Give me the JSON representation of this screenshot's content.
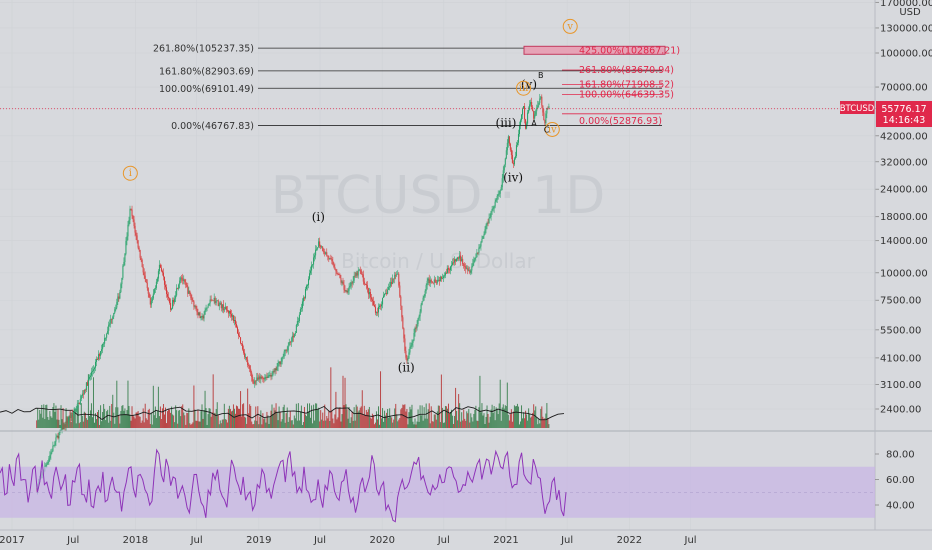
{
  "chart_data": {
    "type": "candlestick",
    "symbol": "BTCUSD",
    "watermark": "BTCUSD · 1D",
    "watermark_sub": "Bitcoin / U.S. Dollar",
    "currency": "USD",
    "last_price": "55776.17",
    "countdown": "14:16:43",
    "scale": "log",
    "ylim": [
      1900,
      170000
    ],
    "y_ticks": [
      "170000.00",
      "130000.00",
      "100000.00",
      "70000.00",
      "56000.00",
      "42000.00",
      "32000.00",
      "24000.00",
      "18000.00",
      "14000.00",
      "10000.00",
      "7500.00",
      "5500.00",
      "4100.00",
      "3100.00",
      "2400.00"
    ],
    "x_ticks": [
      "2017",
      "Jul",
      "2018",
      "Jul",
      "2019",
      "Jul",
      "2020",
      "Jul",
      "2021",
      "Jul",
      "2022",
      "Jul"
    ],
    "price_path": [
      {
        "date": "2017-03",
        "price": 1050
      },
      {
        "date": "2017-05",
        "price": 1800
      },
      {
        "date": "2017-07",
        "price": 2500
      },
      {
        "date": "2017-09",
        "price": 4200
      },
      {
        "date": "2017-11",
        "price": 8000
      },
      {
        "date": "2017-12-17",
        "price": 19700
      },
      {
        "date": "2018-02",
        "price": 7000
      },
      {
        "date": "2018-03",
        "price": 11000
      },
      {
        "date": "2018-04",
        "price": 6800
      },
      {
        "date": "2018-05",
        "price": 9700
      },
      {
        "date": "2018-07",
        "price": 6100
      },
      {
        "date": "2018-08",
        "price": 7700
      },
      {
        "date": "2018-10",
        "price": 6400
      },
      {
        "date": "2018-12-15",
        "price": 3200
      },
      {
        "date": "2019-02",
        "price": 3500
      },
      {
        "date": "2019-04",
        "price": 5200
      },
      {
        "date": "2019-06-26",
        "price": 13800
      },
      {
        "date": "2019-08",
        "price": 10500
      },
      {
        "date": "2019-09",
        "price": 8200
      },
      {
        "date": "2019-10-26",
        "price": 10300
      },
      {
        "date": "2019-12",
        "price": 6600
      },
      {
        "date": "2020-02",
        "price": 10300
      },
      {
        "date": "2020-03-12",
        "price": 3850
      },
      {
        "date": "2020-05",
        "price": 9200
      },
      {
        "date": "2020-06",
        "price": 9300
      },
      {
        "date": "2020-08",
        "price": 11800
      },
      {
        "date": "2020-09",
        "price": 10200
      },
      {
        "date": "2020-10",
        "price": 13200
      },
      {
        "date": "2020-11",
        "price": 18500
      },
      {
        "date": "2020-12",
        "price": 23500
      },
      {
        "date": "2021-01-08",
        "price": 41000
      },
      {
        "date": "2021-01-22",
        "price": 30000
      },
      {
        "date": "2021-02-21",
        "price": 58000
      },
      {
        "date": "2021-02-28",
        "price": 45000
      },
      {
        "date": "2021-03-13",
        "price": 61500
      },
      {
        "date": "2021-03-25",
        "price": 51000
      },
      {
        "date": "2021-04-14",
        "price": 64500
      },
      {
        "date": "2021-04-25",
        "price": 47000
      },
      {
        "date": "2021-05-03",
        "price": 58000
      },
      {
        "date": "2021-05-10",
        "price": 55776
      }
    ],
    "fib_left": [
      {
        "label": "261.80%(105237.35)",
        "price": 105237.35
      },
      {
        "label": "161.80%(82903.69)",
        "price": 82903.69
      },
      {
        "label": "100.00%(69101.49)",
        "price": 69101.49
      },
      {
        "label": "0.00%(46767.83)",
        "price": 46767.83
      }
    ],
    "fib_right": [
      {
        "label": "425.00%(102867.21)",
        "price": 102867.21
      },
      {
        "label": "261.80%(83670.94)",
        "price": 83670.94
      },
      {
        "label": "161.80%(71908.52)",
        "price": 71908.52
      },
      {
        "label": "100.00%(64639.35)",
        "price": 64639.35
      },
      {
        "label": "0.00%(52876.93)",
        "price": 52876.93
      }
    ],
    "waves": [
      {
        "label": "i",
        "style": "circle-orange",
        "date": "2017-12-17",
        "price": 27500
      },
      {
        "label": "(i)",
        "style": "black",
        "date": "2019-06-26",
        "price": 17200
      },
      {
        "label": "(ii)",
        "style": "black",
        "date": "2020-03-12",
        "price": 3550
      },
      {
        "label": "(iii)",
        "style": "black",
        "date": "2021-01-01",
        "price": 46000
      },
      {
        "label": "(iv)",
        "style": "black",
        "date": "2021-01-22",
        "price": 26000
      },
      {
        "label": "(v)",
        "style": "black",
        "date": "2021-03-10",
        "price": 69000
      },
      {
        "label": "iii",
        "style": "circle-orange",
        "date": "2021-02-22",
        "price": 67000
      },
      {
        "label": "iv",
        "style": "circle-orange",
        "date": "2021-05-18",
        "price": 43500
      },
      {
        "label": "v",
        "style": "circle-orange",
        "date": "2021-07-10",
        "price": 128000
      },
      {
        "label": "A",
        "style": "small",
        "date": "2021-03-25",
        "price": 46500
      },
      {
        "label": "B",
        "style": "small",
        "date": "2021-04-14",
        "price": 77000
      },
      {
        "label": "C",
        "style": "small",
        "date": "2021-05-01",
        "price": 43500
      }
    ],
    "rsi": {
      "y_ticks": [
        "80.00",
        "60.00",
        "40.00"
      ],
      "band": [
        30,
        70
      ],
      "path": [
        65,
        48,
        72,
        55,
        80,
        60,
        42,
        68,
        50,
        75,
        58,
        45,
        70,
        52,
        64,
        40,
        58,
        72,
        48,
        60,
        38,
        55,
        66,
        44,
        62,
        50,
        35,
        58,
        70,
        46,
        64,
        52,
        40,
        66,
        80,
        58,
        70,
        62,
        45,
        55,
        38,
        50,
        64,
        42,
        30,
        48,
        60,
        52,
        44,
        58,
        70,
        55,
        62,
        48,
        36,
        56,
        68,
        50,
        45,
        62,
        74,
        58,
        82,
        66,
        54,
        70,
        50,
        44,
        60,
        38,
        52,
        64,
        46,
        58,
        68,
        42,
        34,
        56,
        50,
        62,
        72,
        48,
        58,
        40,
        28,
        46,
        60,
        54,
        66,
        72,
        60,
        56,
        48,
        52,
        64,
        58,
        70,
        62,
        50,
        56,
        66,
        58,
        72,
        60,
        76,
        64,
        82,
        70,
        78,
        62,
        56,
        74,
        64,
        58,
        76,
        62,
        46,
        40,
        58,
        44,
        36,
        50
      ]
    }
  }
}
